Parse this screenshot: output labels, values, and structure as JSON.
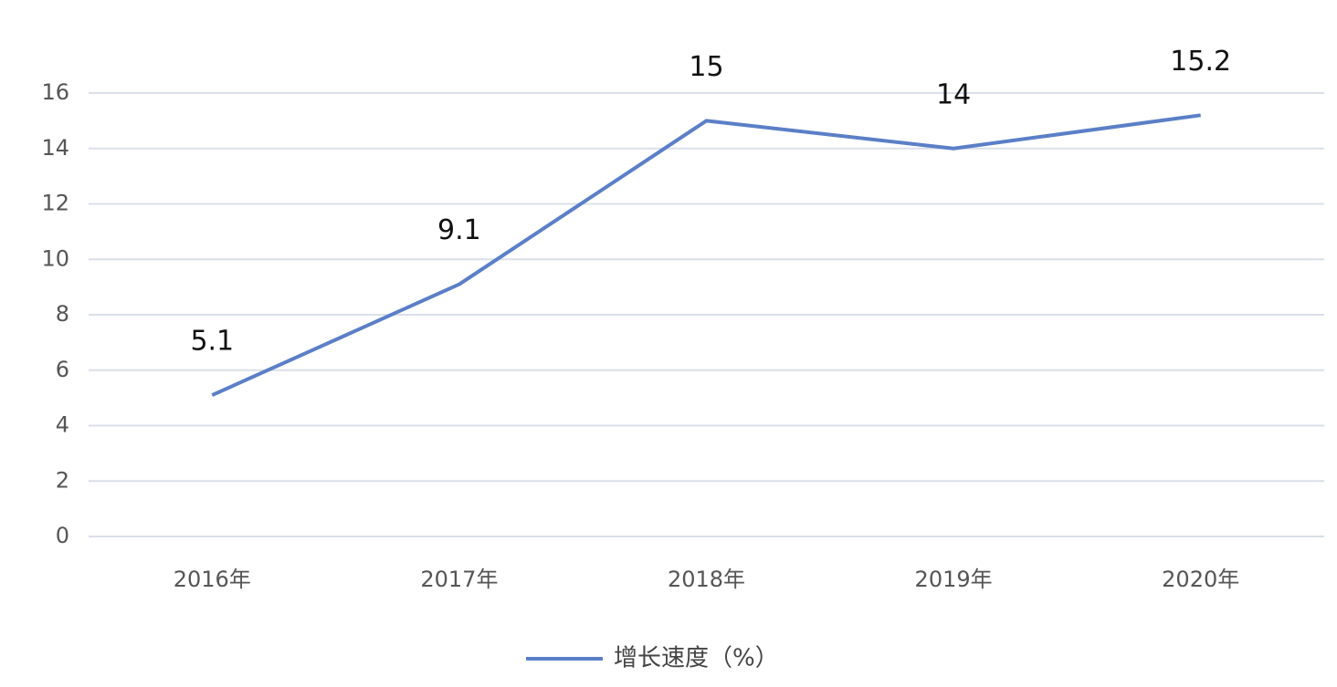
{
  "chart_data": {
    "type": "line",
    "categories": [
      "2016年",
      "2017年",
      "2018年",
      "2019年",
      "2020年"
    ],
    "series": [
      {
        "name": "增长速度（%）",
        "color": "#5b7fc7",
        "values": [
          5.1,
          9.1,
          15,
          14,
          15.2
        ]
      }
    ],
    "ylim": [
      0,
      16
    ],
    "yticks": [
      0,
      2,
      4,
      6,
      8,
      10,
      12,
      14,
      16
    ],
    "grid": true,
    "legend": "bottom",
    "data_labels": true
  }
}
